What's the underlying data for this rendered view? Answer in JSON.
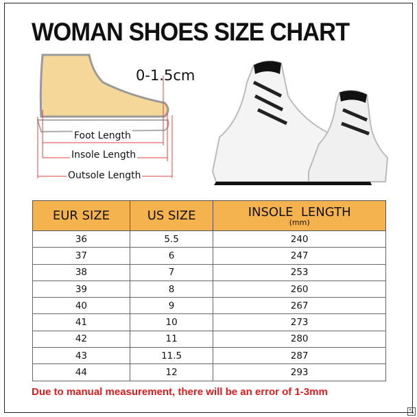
{
  "title": "WOMAN SHOES SIZE CHART",
  "diagram": {
    "tolerance": "0-1.5cm",
    "foot_length": "Foot Length",
    "insole_length": "Insole Length",
    "outsole_length": "Outsole Length"
  },
  "table": {
    "headers": [
      "EUR SIZE",
      "US SIZE",
      "INSOLE  LENGTH"
    ],
    "unit": "(mm)",
    "rows": [
      [
        "36",
        "5.5",
        "240"
      ],
      [
        "37",
        "6",
        "247"
      ],
      [
        "38",
        "7",
        "253"
      ],
      [
        "39",
        "8",
        "260"
      ],
      [
        "40",
        "9",
        "267"
      ],
      [
        "41",
        "10",
        "273"
      ],
      [
        "42",
        "11",
        "280"
      ],
      [
        "43",
        "11.5",
        "287"
      ],
      [
        "44",
        "12",
        "293"
      ]
    ]
  },
  "note": "Due to manual measurement, there will be an error of 1-3mm",
  "colors": {
    "header": "#f5b34f",
    "note": "#e01b1b",
    "measure_lines": "#e04040"
  }
}
